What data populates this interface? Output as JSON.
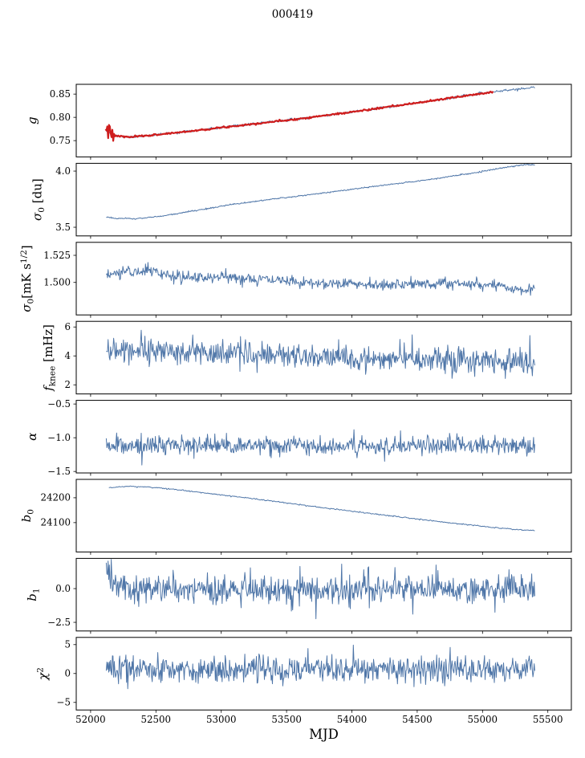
{
  "title": "000419",
  "figure": {
    "xlabel": "MJD",
    "xlim": [
      51890,
      55680
    ],
    "xticks": [
      {
        "v": 52000,
        "l": "52000"
      },
      {
        "v": 52500,
        "l": "52500"
      },
      {
        "v": 53000,
        "l": "53000"
      },
      {
        "v": 53500,
        "l": "53500"
      },
      {
        "v": 54000,
        "l": "54000"
      },
      {
        "v": 54500,
        "l": "54500"
      },
      {
        "v": 55000,
        "l": "55000"
      },
      {
        "v": 55500,
        "l": "55500"
      }
    ],
    "axis_color": "#000000",
    "background": "#ffffff",
    "line_blue": "#4f76a8",
    "line_red": "#cf1d1d"
  },
  "chart_data": [
    {
      "id": "g",
      "type": "line",
      "ylabel_segments": [
        {
          "t": "g",
          "s": "i"
        }
      ],
      "ylim": [
        0.715,
        0.871
      ],
      "yticks": [
        {
          "v": 0.75,
          "l": "0.75"
        },
        {
          "v": 0.8,
          "l": "0.80"
        },
        {
          "v": 0.85,
          "l": "0.85"
        }
      ],
      "series": [
        {
          "name": "gain",
          "color": "#4f76a8",
          "width": 1.0,
          "n": 620,
          "seed": 11,
          "noise": 0.0012,
          "xrange": [
            52118,
            55400
          ],
          "trend": [
            [
              52118,
              0.772
            ],
            [
              52180,
              0.7605
            ],
            [
              52300,
              0.7575
            ],
            [
              52500,
              0.7625
            ],
            [
              52800,
              0.7715
            ],
            [
              53200,
              0.7845
            ],
            [
              53600,
              0.797
            ],
            [
              54000,
              0.8115
            ],
            [
              54400,
              0.827
            ],
            [
              54800,
              0.8435
            ],
            [
              55100,
              0.8555
            ],
            [
              55250,
              0.86
            ],
            [
              55400,
              0.8645
            ]
          ]
        },
        {
          "name": "gain-fit",
          "color": "#cf1d1d",
          "width": 2.2,
          "n": 460,
          "seed": 7,
          "noise": 0.0009,
          "xrange": [
            52115,
            55080
          ],
          "start_noise": {
            "until": 52180,
            "amp": 0.011
          },
          "trend": [
            [
              52115,
              0.773
            ],
            [
              52180,
              0.7605
            ],
            [
              52300,
              0.7575
            ],
            [
              52500,
              0.7625
            ],
            [
              52800,
              0.7715
            ],
            [
              53200,
              0.7845
            ],
            [
              53600,
              0.797
            ],
            [
              54000,
              0.8115
            ],
            [
              54400,
              0.827
            ],
            [
              54800,
              0.8435
            ],
            [
              55080,
              0.8548
            ]
          ]
        }
      ]
    },
    {
      "id": "sigma0-du",
      "type": "line",
      "ylabel_segments": [
        {
          "t": "σ",
          "s": "i"
        },
        {
          "t": "0",
          "s": "sub"
        },
        {
          "t": " [du]",
          "s": "n"
        }
      ],
      "ylim": [
        3.423,
        4.069
      ],
      "yticks": [
        {
          "v": 3.5,
          "l": "3.5"
        },
        {
          "v": 4.0,
          "l": "4.0"
        }
      ],
      "series": [
        {
          "name": "sigma0-du",
          "color": "#4f76a8",
          "width": 1.0,
          "n": 620,
          "seed": 21,
          "noise": 0.003,
          "xrange": [
            52120,
            55400
          ],
          "trend": [
            [
              52120,
              3.592
            ],
            [
              52200,
              3.578
            ],
            [
              52350,
              3.576
            ],
            [
              52550,
              3.6
            ],
            [
              52800,
              3.648
            ],
            [
              53100,
              3.706
            ],
            [
              53400,
              3.752
            ],
            [
              53700,
              3.793
            ],
            [
              54000,
              3.838
            ],
            [
              54300,
              3.882
            ],
            [
              54600,
              3.925
            ],
            [
              54900,
              3.978
            ],
            [
              55150,
              4.028
            ],
            [
              55300,
              4.055
            ],
            [
              55350,
              4.06
            ],
            [
              55400,
              4.052
            ]
          ]
        }
      ]
    },
    {
      "id": "sigma0-mK",
      "type": "line",
      "ylabel_segments": [
        {
          "t": "σ",
          "s": "i"
        },
        {
          "t": "0",
          "s": "sub"
        },
        {
          "t": "[mK s",
          "s": "n"
        },
        {
          "t": "1/2",
          "s": "sup"
        },
        {
          "t": "]",
          "s": "n"
        }
      ],
      "ylim": [
        1.47,
        1.537
      ],
      "yticks": [
        {
          "v": 1.5,
          "l": "1.500"
        },
        {
          "v": 1.525,
          "l": "1.525"
        }
      ],
      "series": [
        {
          "name": "sigma0-mK",
          "color": "#4f76a8",
          "width": 1.0,
          "n": 700,
          "seed": 31,
          "noise": 0.0026,
          "xrange": [
            52120,
            55400
          ],
          "trend": [
            [
              52120,
              1.506
            ],
            [
              52250,
              1.51
            ],
            [
              52450,
              1.511
            ],
            [
              52700,
              1.504
            ],
            [
              53000,
              1.505
            ],
            [
              53300,
              1.503
            ],
            [
              53600,
              1.5
            ],
            [
              53900,
              1.4995
            ],
            [
              54200,
              1.498
            ],
            [
              54500,
              1.4985
            ],
            [
              54800,
              1.499
            ],
            [
              55100,
              1.4975
            ],
            [
              55300,
              1.494
            ],
            [
              55400,
              1.4935
            ]
          ]
        }
      ]
    },
    {
      "id": "fknee",
      "type": "line",
      "ylabel_segments": [
        {
          "t": "f",
          "s": "i"
        },
        {
          "t": "knee",
          "s": "sub"
        },
        {
          "t": " [mHz]",
          "s": "n"
        }
      ],
      "ylim": [
        1.37,
        6.39
      ],
      "yticks": [
        {
          "v": 2,
          "l": "2"
        },
        {
          "v": 4,
          "l": "4"
        },
        {
          "v": 6,
          "l": "6"
        }
      ],
      "series": [
        {
          "name": "fknee",
          "color": "#4f76a8",
          "width": 1.0,
          "n": 700,
          "seed": 41,
          "noise": 0.42,
          "xrange": [
            52120,
            55400
          ],
          "spike": {
            "prob": 0.01,
            "amp": 1.3
          },
          "trend": [
            [
              52120,
              4.55
            ],
            [
              52250,
              4.45
            ],
            [
              52500,
              4.35
            ],
            [
              52900,
              4.2
            ],
            [
              53300,
              4.05
            ],
            [
              53700,
              3.95
            ],
            [
              54100,
              3.9
            ],
            [
              54500,
              3.8
            ],
            [
              54900,
              3.72
            ],
            [
              55200,
              3.6
            ],
            [
              55400,
              3.55
            ]
          ]
        }
      ]
    },
    {
      "id": "alpha",
      "type": "line",
      "ylabel_segments": [
        {
          "t": "α",
          "s": "i"
        }
      ],
      "ylim": [
        -1.522,
        -0.446
      ],
      "yticks": [
        {
          "v": -0.5,
          "l": "−0.5"
        },
        {
          "v": -1.0,
          "l": "−1.0"
        },
        {
          "v": -1.5,
          "l": "−1.5"
        }
      ],
      "series": [
        {
          "name": "alpha",
          "color": "#4f76a8",
          "width": 1.0,
          "n": 700,
          "seed": 51,
          "noise": 0.068,
          "xrange": [
            52120,
            55400
          ],
          "spike": {
            "prob": 0.006,
            "amp": 0.22
          },
          "trend": [
            [
              52120,
              -1.128
            ],
            [
              53000,
              -1.12
            ],
            [
              54000,
              -1.118
            ],
            [
              54800,
              -1.11
            ],
            [
              55400,
              -1.125
            ]
          ]
        }
      ]
    },
    {
      "id": "b0",
      "type": "line",
      "ylabel_segments": [
        {
          "t": "b",
          "s": "i"
        },
        {
          "t": "0",
          "s": "sub"
        }
      ],
      "ylim": [
        23982,
        24274
      ],
      "yticks": [
        {
          "v": 24100,
          "l": "24100"
        },
        {
          "v": 24200,
          "l": "24200"
        }
      ],
      "series": [
        {
          "name": "b0",
          "color": "#4f76a8",
          "width": 1.0,
          "n": 500,
          "seed": 61,
          "noise": 1.2,
          "xrange": [
            52140,
            55400
          ],
          "trend": [
            [
              52140,
              24241
            ],
            [
              52300,
              24246
            ],
            [
              52450,
              24243
            ],
            [
              52600,
              24236
            ],
            [
              52800,
              24224
            ],
            [
              53000,
              24212
            ],
            [
              53200,
              24199
            ],
            [
              53400,
              24186
            ],
            [
              53600,
              24172
            ],
            [
              53800,
              24158
            ],
            [
              54000,
              24146
            ],
            [
              54200,
              24133
            ],
            [
              54400,
              24121
            ],
            [
              54600,
              24108
            ],
            [
              54800,
              24097
            ],
            [
              55000,
              24085
            ],
            [
              55150,
              24077
            ],
            [
              55300,
              24070
            ],
            [
              55400,
              24069
            ]
          ]
        }
      ]
    },
    {
      "id": "b1",
      "type": "line",
      "ylabel_segments": [
        {
          "t": "b",
          "s": "i"
        },
        {
          "t": "1",
          "s": "sub"
        }
      ],
      "ylim": [
        -3.14,
        2.24
      ],
      "yticks": [
        {
          "v": 0.0,
          "l": "0.0"
        },
        {
          "v": -2.5,
          "l": "−2.5"
        }
      ],
      "series": [
        {
          "name": "b1",
          "color": "#4f76a8",
          "width": 1.0,
          "n": 700,
          "seed": 71,
          "noise": 0.55,
          "xrange": [
            52120,
            55400
          ],
          "spike": {
            "prob": 0.005,
            "amp": 1.8,
            "sign": -1
          },
          "trend": [
            [
              52120,
              1.7
            ],
            [
              52150,
              1.0
            ],
            [
              52200,
              0.35
            ],
            [
              52300,
              0.05
            ],
            [
              52600,
              -0.05
            ],
            [
              55400,
              -0.05
            ]
          ]
        }
      ]
    },
    {
      "id": "chi2",
      "type": "line",
      "ylabel_segments": [
        {
          "t": "χ",
          "s": "i"
        },
        {
          "t": "2",
          "s": "sup"
        }
      ],
      "ylim": [
        -6.31,
        6.25
      ],
      "yticks": [
        {
          "v": -5,
          "l": "−5"
        },
        {
          "v": 0,
          "l": "0"
        },
        {
          "v": 5,
          "l": "5"
        }
      ],
      "series": [
        {
          "name": "chi2",
          "color": "#4f76a8",
          "width": 1.0,
          "n": 700,
          "seed": 81,
          "noise": 1.15,
          "xrange": [
            52120,
            55400
          ],
          "spike": {
            "prob": 0.004,
            "amp": 2.0
          },
          "trend": [
            [
              52120,
              0.75
            ],
            [
              55400,
              0.75
            ]
          ]
        }
      ]
    }
  ]
}
